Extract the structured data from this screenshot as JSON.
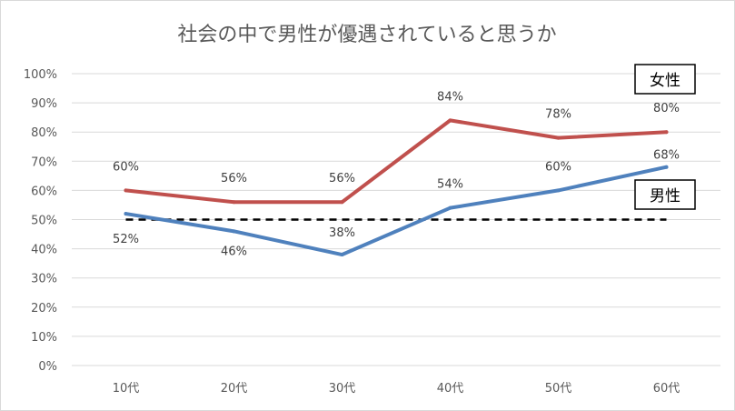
{
  "chart_data": {
    "type": "line",
    "title": "社会の中で男性が優遇されていると思うか",
    "categories": [
      "10代",
      "20代",
      "30代",
      "40代",
      "50代",
      "60代"
    ],
    "y_ticks": [
      "0%",
      "10%",
      "20%",
      "30%",
      "40%",
      "50%",
      "60%",
      "70%",
      "80%",
      "90%",
      "100%"
    ],
    "ylim": [
      0,
      100
    ],
    "grid": true,
    "series": [
      {
        "name": "女性",
        "color": "#c0504d",
        "values": [
          60,
          56,
          56,
          84,
          78,
          80
        ],
        "labels": [
          "60%",
          "56%",
          "56%",
          "84%",
          "78%",
          "80%"
        ]
      },
      {
        "name": "男性",
        "color": "#4f81bd",
        "values": [
          52,
          46,
          38,
          54,
          60,
          68
        ],
        "labels": [
          "52%",
          "46%",
          "38%",
          "54%",
          "60%",
          "68%"
        ]
      }
    ],
    "reference_line": {
      "value": 50,
      "style": "dashed",
      "color": "#000000"
    }
  }
}
